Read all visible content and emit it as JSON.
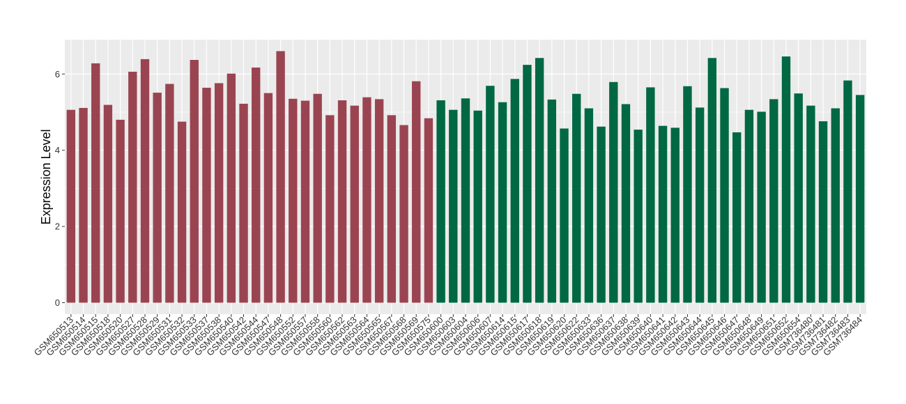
{
  "chart_data": {
    "type": "bar",
    "ylabel": "Expression Level",
    "xlabel": "",
    "title": "",
    "ylim": [
      -0.3,
      6.9
    ],
    "yticks": [
      0,
      2,
      4,
      6
    ],
    "grid": true,
    "panel_background": "#EBEBEB",
    "grid_color": "#FFFFFF",
    "group_colors": [
      "#9B4451",
      "#006843"
    ],
    "categories": [
      "GSM650513",
      "GSM650514",
      "GSM650515",
      "GSM650518",
      "GSM650520",
      "GSM650527",
      "GSM650528",
      "GSM650529",
      "GSM650531",
      "GSM650532",
      "GSM650533",
      "GSM650537",
      "GSM650538",
      "GSM650540",
      "GSM650542",
      "GSM650544",
      "GSM650547",
      "GSM650548",
      "GSM650552",
      "GSM650557",
      "GSM650558",
      "GSM650560",
      "GSM650562",
      "GSM650563",
      "GSM650564",
      "GSM650565",
      "GSM650567",
      "GSM650568",
      "GSM650569",
      "GSM650575",
      "GSM650600",
      "GSM650603",
      "GSM650604",
      "GSM650606",
      "GSM650607",
      "GSM650614",
      "GSM650615",
      "GSM650617",
      "GSM650618",
      "GSM650619",
      "GSM650620",
      "GSM650622",
      "GSM650633",
      "GSM650636",
      "GSM650637",
      "GSM650638",
      "GSM650639",
      "GSM650640",
      "GSM650641",
      "GSM650642",
      "GSM650643",
      "GSM650644",
      "GSM650645",
      "GSM650646",
      "GSM650647",
      "GSM650648",
      "GSM650649",
      "GSM650651",
      "GSM650652",
      "GSM650654",
      "GSM736480",
      "GSM736481",
      "GSM736482",
      "GSM736483",
      "GSM736484"
    ],
    "values": [
      5.06,
      5.11,
      6.28,
      5.19,
      4.8,
      6.06,
      6.39,
      5.51,
      5.74,
      4.75,
      6.37,
      5.64,
      5.76,
      6.01,
      5.22,
      6.17,
      5.5,
      6.6,
      5.35,
      5.3,
      5.48,
      4.92,
      5.31,
      5.17,
      5.39,
      5.34,
      4.92,
      4.66,
      5.81,
      4.84,
      5.31,
      5.06,
      5.36,
      5.04,
      5.69,
      5.26,
      5.87,
      6.24,
      6.42,
      5.33,
      4.57,
      5.48,
      5.1,
      4.62,
      5.79,
      5.21,
      4.54,
      5.65,
      4.64,
      4.59,
      5.68,
      5.12,
      6.42,
      5.63,
      4.47,
      5.06,
      5.01,
      5.34,
      6.46,
      5.49,
      5.17,
      4.76,
      5.1,
      5.83,
      5.45
    ],
    "group_index": [
      0,
      0,
      0,
      0,
      0,
      0,
      0,
      0,
      0,
      0,
      0,
      0,
      0,
      0,
      0,
      0,
      0,
      0,
      0,
      0,
      0,
      0,
      0,
      0,
      0,
      0,
      0,
      0,
      0,
      0,
      1,
      1,
      1,
      1,
      1,
      1,
      1,
      1,
      1,
      1,
      1,
      1,
      1,
      1,
      1,
      1,
      1,
      1,
      1,
      1,
      1,
      1,
      1,
      1,
      1,
      1,
      1,
      1,
      1,
      1,
      1,
      1,
      1,
      1,
      1
    ]
  }
}
